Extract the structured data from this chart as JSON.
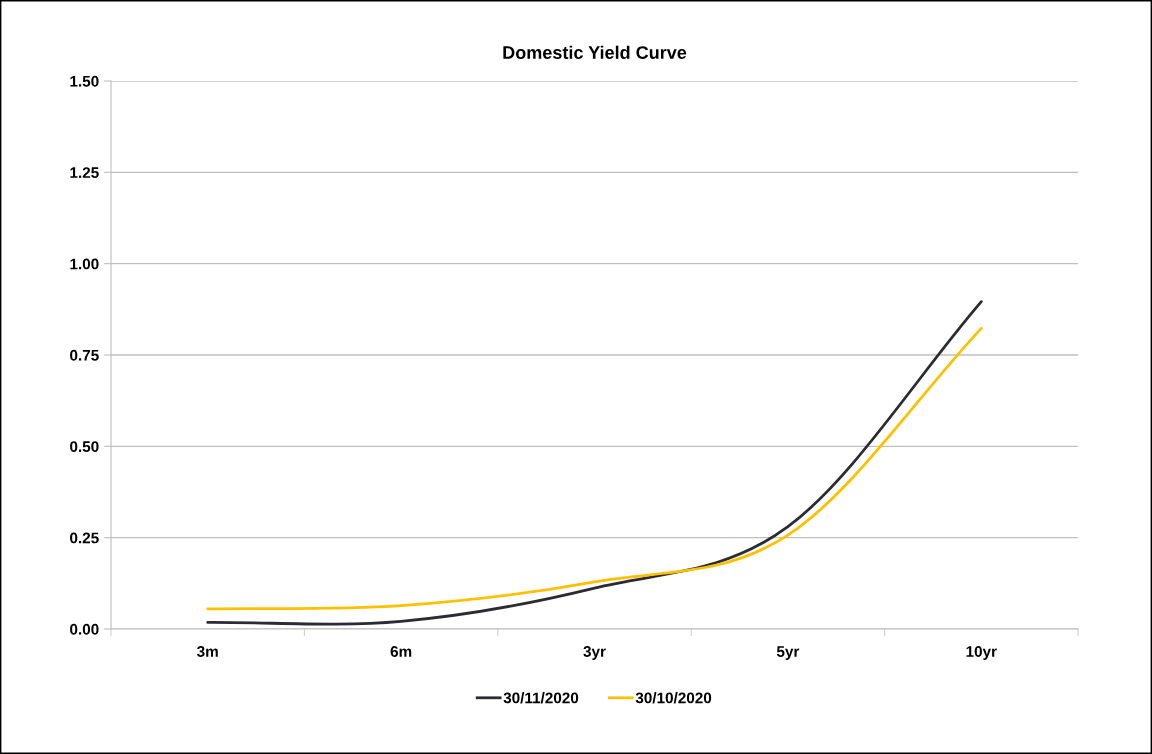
{
  "chart_data": {
    "type": "line",
    "title": "Domestic Yield Curve",
    "categories": [
      "3m",
      "6m",
      "3yr",
      "5yr",
      "10yr"
    ],
    "series": [
      {
        "name": "30/11/2020",
        "color": "#2b2b33",
        "values": [
          0.018,
          0.021,
          0.112,
          0.28,
          0.896
        ]
      },
      {
        "name": "30/10/2020",
        "color": "#ffc000",
        "values": [
          0.055,
          0.064,
          0.129,
          0.257,
          0.823
        ]
      }
    ],
    "ylim": [
      0,
      1.5
    ],
    "yticks": [
      {
        "value": 0,
        "label": "0.00"
      },
      {
        "value": 0.25,
        "label": "0.25"
      },
      {
        "value": 0.5,
        "label": "0.50"
      },
      {
        "value": 0.75,
        "label": "0.75"
      },
      {
        "value": 1.0,
        "label": "1.00"
      },
      {
        "value": 1.25,
        "label": "1.25"
      },
      {
        "value": 1.5,
        "label": "1.50"
      }
    ],
    "grid": "y",
    "legend": "bottom",
    "marker": "none",
    "line_style": "solid"
  }
}
